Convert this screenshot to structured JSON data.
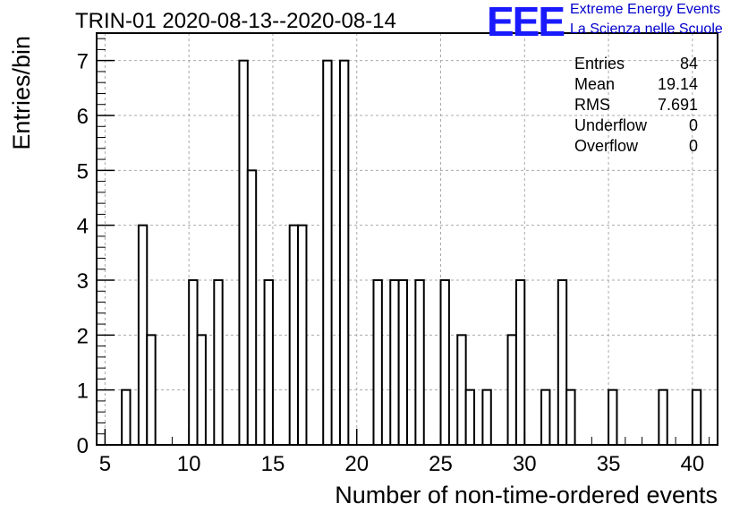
{
  "title": "TRIN-01 2020-08-13--2020-08-14",
  "logo": {
    "mark": "EEE",
    "line1": "Extreme Energy Events",
    "line2": "La Scienza nelle Scuole"
  },
  "stats": [
    {
      "label": "Entries",
      "value": "84"
    },
    {
      "label": "Mean",
      "value": "19.14"
    },
    {
      "label": "RMS",
      "value": "7.691"
    },
    {
      "label": "Underflow",
      "value": "0"
    },
    {
      "label": "Overflow",
      "value": "0"
    }
  ],
  "chart_data": {
    "type": "bar",
    "title": "TRIN-01 2020-08-13--2020-08-14",
    "xlabel": "Number of non-time-ordered events",
    "ylabel": "Entries/bin",
    "xlim": [
      4.5,
      41.5
    ],
    "ylim": [
      0,
      7.5
    ],
    "bin_width": 0.5,
    "xticks": [
      5,
      10,
      15,
      20,
      25,
      30,
      35,
      40
    ],
    "yticks": [
      0,
      1,
      2,
      3,
      4,
      5,
      6,
      7
    ],
    "grid": true,
    "x": [
      6,
      7,
      7.5,
      10,
      10.5,
      11.5,
      13,
      13.5,
      14.5,
      16,
      16.5,
      18,
      19,
      21,
      22,
      22.5,
      23.5,
      25,
      26,
      26.5,
      27.5,
      29,
      29.5,
      31,
      32,
      32.5,
      35,
      38,
      40
    ],
    "values": [
      1,
      4,
      2,
      3,
      2,
      3,
      7,
      5,
      3,
      4,
      4,
      7,
      7,
      3,
      3,
      3,
      3,
      3,
      2,
      1,
      1,
      2,
      3,
      1,
      3,
      1,
      1,
      1,
      1
    ],
    "colors": {
      "line": "#000000",
      "grid": "#aaaaaa"
    }
  }
}
